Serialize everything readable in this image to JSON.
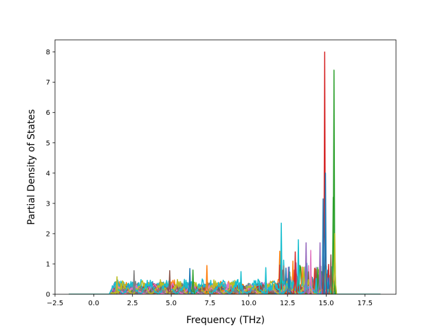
{
  "chart_data": {
    "type": "line",
    "title": "",
    "xlabel": "Frequency (THz)",
    "ylabel": "Partial Density of States",
    "xlim": [
      -2.5,
      19.5
    ],
    "ylim": [
      0,
      8.4
    ],
    "xticks": [
      -2.5,
      0.0,
      2.5,
      5.0,
      7.5,
      10.0,
      12.5,
      15.0,
      17.5
    ],
    "xtick_labels": [
      "−2.5",
      "0.0",
      "2.5",
      "5.0",
      "7.5",
      "10.0",
      "12.5",
      "15.0",
      "17.5"
    ],
    "yticks": [
      0,
      1,
      2,
      3,
      4,
      5,
      6,
      7,
      8
    ],
    "ytick_labels": [
      "0",
      "1",
      "2",
      "3",
      "4",
      "5",
      "6",
      "7",
      "8"
    ],
    "grid": false,
    "legend": false,
    "series_count": 30,
    "colors": [
      "#1f77b4",
      "#ff7f0e",
      "#2ca02c",
      "#d62728",
      "#9467bd",
      "#8c564b",
      "#e377c2",
      "#7f7f7f",
      "#bcbd22",
      "#17becf"
    ],
    "x_range": [
      -1.6,
      18.5
    ],
    "noise_band": {
      "x_start": 1.0,
      "x_end": 12.0,
      "typical_max": 0.8
    },
    "highlighted_peaks": [
      {
        "color": "#d62728",
        "x": 14.9,
        "y": 8.0
      },
      {
        "color": "#2ca02c",
        "x": 15.5,
        "y": 7.4
      },
      {
        "color": "#2ca02c",
        "x": 15.45,
        "y": 3.2
      },
      {
        "color": "#1f77b4",
        "x": 14.95,
        "y": 4.0
      },
      {
        "color": "#1f77b4",
        "x": 14.8,
        "y": 3.15
      },
      {
        "color": "#bcbd22",
        "x": 15.55,
        "y": 2.0
      },
      {
        "color": "#17becf",
        "x": 12.1,
        "y": 2.35
      },
      {
        "color": "#17becf",
        "x": 13.2,
        "y": 1.8
      },
      {
        "color": "#9467bd",
        "x": 13.7,
        "y": 1.7
      },
      {
        "color": "#9467bd",
        "x": 14.6,
        "y": 1.7
      },
      {
        "color": "#e377c2",
        "x": 14.0,
        "y": 1.45
      },
      {
        "color": "#d62728",
        "x": 13.0,
        "y": 1.4
      },
      {
        "color": "#8c564b",
        "x": 15.3,
        "y": 1.3
      },
      {
        "color": "#1f77b4",
        "x": 12.6,
        "y": 0.9
      },
      {
        "color": "#17becf",
        "x": 11.1,
        "y": 0.88
      },
      {
        "color": "#ff7f0e",
        "x": 7.3,
        "y": 0.95
      },
      {
        "color": "#7f7f7f",
        "x": 2.6,
        "y": 0.78
      },
      {
        "color": "#bcbd22",
        "x": 1.5,
        "y": 0.58
      },
      {
        "color": "#8c564b",
        "x": 4.9,
        "y": 0.78
      },
      {
        "color": "#2ca02c",
        "x": 6.4,
        "y": 0.8
      },
      {
        "color": "#1f77b4",
        "x": 6.2,
        "y": 0.85
      },
      {
        "color": "#17becf",
        "x": 9.5,
        "y": 0.75
      }
    ]
  }
}
